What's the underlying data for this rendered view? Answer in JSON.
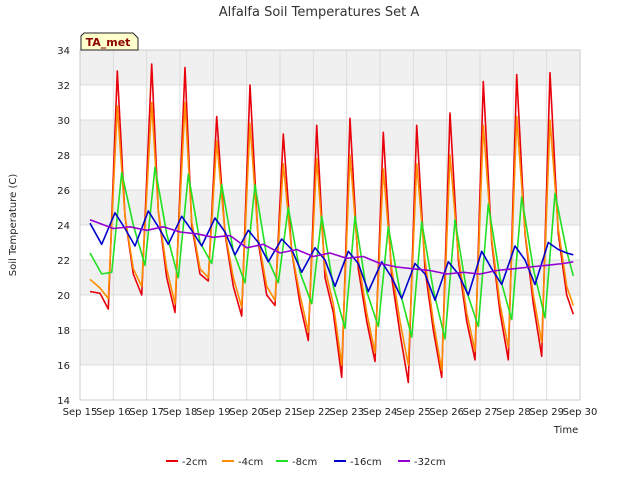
{
  "chart_data": {
    "type": "line",
    "title": "Alfalfa Soil Temperatures Set A",
    "xlabel": "Time",
    "ylabel": "Soil Temperature (C)",
    "badge": "TA_met",
    "ylim": [
      14,
      34
    ],
    "yticks": [
      14,
      16,
      18,
      20,
      22,
      24,
      26,
      28,
      30,
      32,
      34
    ],
    "xlim": [
      0,
      15
    ],
    "xticks": [
      {
        "x": 0,
        "label": "Sep 15"
      },
      {
        "x": 1,
        "label": "Sep 16"
      },
      {
        "x": 2,
        "label": "Sep 17"
      },
      {
        "x": 3,
        "label": "Sep 18"
      },
      {
        "x": 4,
        "label": "Sep 19"
      },
      {
        "x": 5,
        "label": "Sep 20"
      },
      {
        "x": 6,
        "label": "Sep 21"
      },
      {
        "x": 7,
        "label": "Sep 22"
      },
      {
        "x": 8,
        "label": "Sep 23"
      },
      {
        "x": 9,
        "label": "Sep 24"
      },
      {
        "x": 10,
        "label": "Sep 25"
      },
      {
        "x": 11,
        "label": "Sep 26"
      },
      {
        "x": 12,
        "label": "Sep 27"
      },
      {
        "x": 13,
        "label": "Sep 28"
      },
      {
        "x": 14,
        "label": "Sep 29"
      },
      {
        "x": 15,
        "label": "Sep 30"
      }
    ],
    "grid": true,
    "legend_position": "bottom",
    "series": [
      {
        "name": "-2cm",
        "color": "#e8000b",
        "x": [
          0.3,
          0.6,
          0.85,
          1.12,
          1.35,
          1.6,
          1.85,
          2.15,
          2.35,
          2.6,
          2.85,
          3.15,
          3.35,
          3.6,
          3.85,
          4.1,
          4.35,
          4.6,
          4.85,
          5.1,
          5.35,
          5.6,
          5.85,
          6.1,
          6.35,
          6.6,
          6.85,
          7.1,
          7.35,
          7.6,
          7.85,
          8.1,
          8.35,
          8.6,
          8.85,
          9.1,
          9.35,
          9.6,
          9.85,
          10.1,
          10.35,
          10.6,
          10.85,
          11.1,
          11.35,
          11.6,
          11.85,
          12.1,
          12.35,
          12.6,
          12.85,
          13.1,
          13.35,
          13.6,
          13.85,
          14.1,
          14.35,
          14.6,
          14.8
        ],
        "values": [
          20.2,
          20.1,
          19.2,
          32.8,
          24.5,
          21.2,
          20.0,
          33.2,
          24.8,
          21.0,
          19.0,
          33.0,
          24.0,
          21.2,
          20.8,
          30.2,
          23.5,
          20.5,
          18.8,
          32.0,
          23.0,
          20.0,
          19.4,
          29.2,
          22.5,
          19.5,
          17.4,
          29.7,
          21.0,
          19.0,
          15.3,
          30.1,
          21.5,
          18.5,
          16.2,
          29.3,
          21.0,
          17.8,
          15.0,
          29.7,
          21.5,
          18.0,
          15.3,
          30.4,
          22.0,
          18.5,
          16.3,
          32.2,
          23.0,
          19.0,
          16.3,
          32.6,
          23.5,
          19.5,
          16.5,
          32.7,
          23.5,
          20.0,
          18.9
        ]
      },
      {
        "name": "-4cm",
        "color": "#ff8c00",
        "x": [
          0.3,
          0.6,
          0.85,
          1.12,
          1.35,
          1.6,
          1.85,
          2.15,
          2.35,
          2.6,
          2.85,
          3.15,
          3.35,
          3.6,
          3.85,
          4.1,
          4.35,
          4.6,
          4.85,
          5.1,
          5.35,
          5.6,
          5.85,
          6.1,
          6.35,
          6.6,
          6.85,
          7.1,
          7.35,
          7.6,
          7.85,
          8.1,
          8.35,
          8.6,
          8.85,
          9.1,
          9.35,
          9.6,
          9.85,
          10.1,
          10.35,
          10.6,
          10.85,
          11.1,
          11.35,
          11.6,
          11.85,
          12.1,
          12.35,
          12.6,
          12.85,
          13.1,
          13.35,
          13.6,
          13.85,
          14.1,
          14.35,
          14.6,
          14.8
        ],
        "values": [
          20.9,
          20.4,
          19.8,
          30.8,
          24.5,
          21.5,
          20.5,
          31.0,
          24.8,
          21.5,
          19.5,
          31.0,
          24.2,
          21.5,
          21.0,
          28.8,
          23.6,
          21.0,
          19.3,
          29.8,
          23.2,
          20.5,
          19.7,
          27.5,
          22.5,
          20.0,
          17.9,
          27.8,
          21.5,
          19.5,
          16.0,
          28.0,
          22.0,
          19.0,
          16.7,
          27.2,
          21.5,
          18.5,
          16.0,
          27.5,
          22.0,
          18.5,
          15.7,
          28.0,
          22.3,
          19.0,
          16.8,
          29.7,
          23.2,
          19.5,
          17.0,
          30.2,
          23.6,
          20.0,
          17.3,
          30.0,
          23.8,
          20.5,
          19.4
        ]
      },
      {
        "name": "-8cm",
        "color": "#22e022",
        "x": [
          0.3,
          0.65,
          0.95,
          1.25,
          1.6,
          1.95,
          2.25,
          2.6,
          2.95,
          3.25,
          3.6,
          3.95,
          4.25,
          4.6,
          4.95,
          5.25,
          5.6,
          5.95,
          6.25,
          6.6,
          6.95,
          7.25,
          7.6,
          7.95,
          8.25,
          8.6,
          8.95,
          9.25,
          9.6,
          9.95,
          10.25,
          10.6,
          10.95,
          11.25,
          11.6,
          11.95,
          12.25,
          12.6,
          12.95,
          13.25,
          13.6,
          13.95,
          14.25,
          14.6,
          14.8
        ],
        "values": [
          22.4,
          21.2,
          21.3,
          27.0,
          24.0,
          21.7,
          27.3,
          23.5,
          21.0,
          26.9,
          23.0,
          21.8,
          26.3,
          22.5,
          20.7,
          26.3,
          22.2,
          20.7,
          25.0,
          21.3,
          19.5,
          24.5,
          20.5,
          18.1,
          24.5,
          20.2,
          18.2,
          23.9,
          20.2,
          17.6,
          24.2,
          20.3,
          17.5,
          24.3,
          20.2,
          18.2,
          25.2,
          21.0,
          18.6,
          25.6,
          21.5,
          18.7,
          25.8,
          22.5,
          21.1
        ]
      },
      {
        "name": "-16cm",
        "color": "#0000cc",
        "x": [
          0.3,
          0.65,
          1.05,
          1.35,
          1.65,
          2.05,
          2.35,
          2.65,
          3.05,
          3.35,
          3.65,
          4.05,
          4.35,
          4.65,
          5.05,
          5.35,
          5.65,
          6.05,
          6.35,
          6.65,
          7.05,
          7.35,
          7.65,
          8.05,
          8.35,
          8.65,
          9.05,
          9.35,
          9.65,
          10.05,
          10.35,
          10.65,
          11.05,
          11.35,
          11.65,
          12.05,
          12.35,
          12.65,
          13.05,
          13.35,
          13.65,
          14.05,
          14.35,
          14.6,
          14.8
        ],
        "values": [
          24.1,
          22.9,
          24.7,
          23.8,
          22.8,
          24.8,
          23.9,
          22.9,
          24.5,
          23.7,
          22.8,
          24.4,
          23.6,
          22.3,
          23.7,
          23.0,
          21.9,
          23.2,
          22.6,
          21.3,
          22.7,
          22.0,
          20.5,
          22.5,
          21.8,
          20.2,
          21.9,
          21.0,
          19.8,
          21.8,
          21.2,
          19.7,
          21.9,
          21.2,
          20.0,
          22.5,
          21.5,
          20.6,
          22.8,
          22.0,
          20.6,
          23.0,
          22.6,
          22.4,
          22.3
        ]
      },
      {
        "name": "-32cm",
        "color": "#9400d3",
        "x": [
          0.3,
          1.0,
          1.5,
          2.0,
          2.5,
          3.0,
          3.5,
          4.0,
          4.5,
          5.0,
          5.5,
          6.0,
          6.5,
          7.0,
          7.5,
          8.0,
          8.5,
          9.0,
          9.5,
          10.0,
          10.5,
          11.0,
          11.5,
          12.0,
          12.5,
          13.0,
          13.5,
          14.0,
          14.5,
          14.8
        ],
        "values": [
          24.3,
          23.8,
          23.9,
          23.7,
          23.9,
          23.6,
          23.5,
          23.3,
          23.4,
          22.7,
          22.9,
          22.4,
          22.6,
          22.2,
          22.4,
          22.1,
          22.2,
          21.8,
          21.6,
          21.5,
          21.4,
          21.2,
          21.3,
          21.2,
          21.4,
          21.5,
          21.6,
          21.7,
          21.8,
          21.9
        ]
      }
    ]
  }
}
